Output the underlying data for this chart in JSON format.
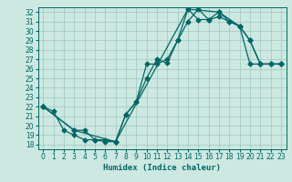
{
  "xlabel": "Humidex (Indice chaleur)",
  "bg_color": "#cce8e0",
  "grid_color": "#9ec8c0",
  "line_color": "#006666",
  "xlim": [
    -0.5,
    23.5
  ],
  "ylim": [
    17.5,
    32.5
  ],
  "xticks": [
    0,
    1,
    2,
    3,
    4,
    5,
    6,
    7,
    8,
    9,
    10,
    11,
    12,
    13,
    14,
    15,
    16,
    17,
    18,
    19,
    20,
    21,
    22,
    23
  ],
  "yticks": [
    18,
    19,
    20,
    21,
    22,
    23,
    24,
    25,
    26,
    27,
    28,
    29,
    30,
    31,
    32
  ],
  "line1_x": [
    0,
    1,
    2,
    3,
    4,
    5,
    6,
    7,
    8,
    9,
    10,
    11,
    12,
    13,
    14,
    15,
    16,
    17,
    18,
    19,
    20,
    21,
    22,
    23
  ],
  "line1_y": [
    22,
    21.5,
    19.5,
    19.0,
    18.5,
    18.5,
    18.3,
    18.3,
    21.2,
    22.5,
    26.5,
    26.5,
    27.0,
    29.0,
    31.0,
    32.3,
    31.2,
    31.5,
    31.0,
    30.5,
    26.5,
    26.5,
    26.5,
    26.5
  ],
  "line2_x": [
    0,
    3,
    4,
    5,
    6,
    7,
    8,
    9,
    10,
    11,
    12,
    13,
    14,
    15,
    16,
    17,
    18,
    19,
    20,
    21,
    22,
    23
  ],
  "line2_y": [
    22,
    19.5,
    19.5,
    18.5,
    18.5,
    18.3,
    21.2,
    22.5,
    25.0,
    27.0,
    26.6,
    29.0,
    32.3,
    31.2,
    31.2,
    32.0,
    31.0,
    30.5,
    29.0,
    26.5,
    26.5,
    26.5
  ],
  "line3_x": [
    0,
    3,
    7,
    14,
    17,
    19,
    20,
    21,
    22,
    23
  ],
  "line3_y": [
    22,
    19.5,
    18.3,
    32.3,
    32.0,
    30.5,
    29.0,
    26.5,
    26.5,
    26.5
  ],
  "xlabel_fontsize": 6.5,
  "tick_fontsize": 5.5
}
